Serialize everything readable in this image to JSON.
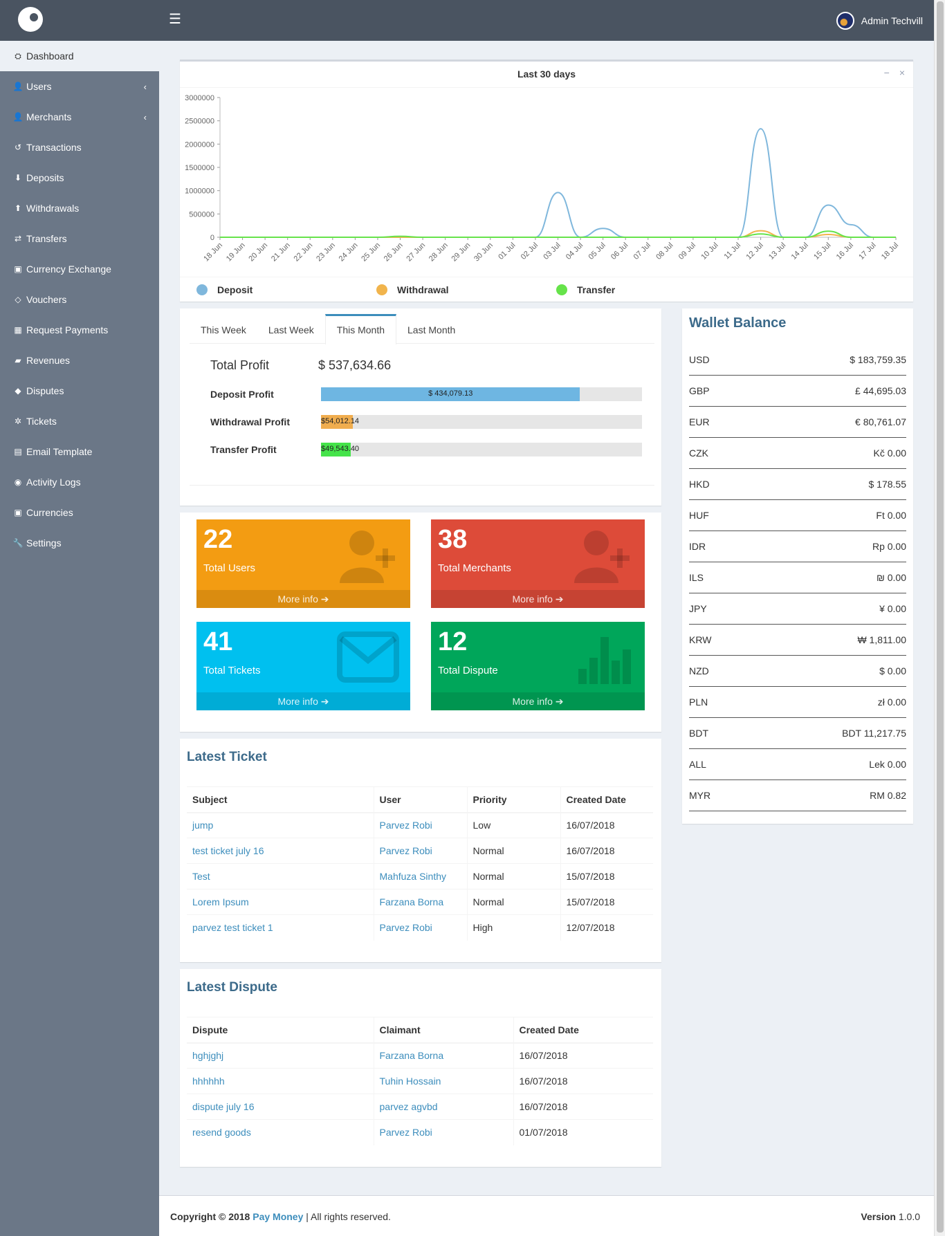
{
  "header": {
    "menu_icon": "☰",
    "user_name": "Admin Techvill"
  },
  "sidebar": {
    "items": [
      {
        "label": "Dashboard",
        "icon": "dashboard-icon",
        "glyph": "⛭"
      },
      {
        "label": "Users",
        "icon": "user-icon",
        "glyph": "👤",
        "arrow": "‹"
      },
      {
        "label": "Merchants",
        "icon": "user-icon",
        "glyph": "👤",
        "arrow": "‹"
      },
      {
        "label": "Transactions",
        "icon": "history-icon",
        "glyph": "↺"
      },
      {
        "label": "Deposits",
        "icon": "arrow-down-icon",
        "glyph": "⬇"
      },
      {
        "label": "Withdrawals",
        "icon": "arrow-up-icon",
        "glyph": "⬆"
      },
      {
        "label": "Transfers",
        "icon": "exchange-icon",
        "glyph": "⇄"
      },
      {
        "label": "Currency Exchange",
        "icon": "money-icon",
        "glyph": "▣"
      },
      {
        "label": "Vouchers",
        "icon": "diamond-icon",
        "glyph": "◇"
      },
      {
        "label": "Request Payments",
        "icon": "calculator-icon",
        "glyph": "▦"
      },
      {
        "label": "Revenues",
        "icon": "book-icon",
        "glyph": "▰"
      },
      {
        "label": "Disputes",
        "icon": "gavel-icon",
        "glyph": "◆"
      },
      {
        "label": "Tickets",
        "icon": "spinner-icon",
        "glyph": "✲"
      },
      {
        "label": "Email Template",
        "icon": "keyboard-icon",
        "glyph": "▤"
      },
      {
        "label": "Activity Logs",
        "icon": "eye-icon",
        "glyph": "◉"
      },
      {
        "label": "Currencies",
        "icon": "money-icon",
        "glyph": "▣"
      },
      {
        "label": "Settings",
        "icon": "wrench-icon",
        "glyph": "🔧"
      }
    ]
  },
  "chart_box": {
    "title": "Last 30 days",
    "minimize": "−",
    "close": "×"
  },
  "chart_data": {
    "type": "line",
    "title": "Last 30 days",
    "x": [
      "18 Jun",
      "19 Jun",
      "20 Jun",
      "21 Jun",
      "22 Jun",
      "23 Jun",
      "24 Jun",
      "25 Jun",
      "26 Jun",
      "27 Jun",
      "28 Jun",
      "29 Jun",
      "30 Jun",
      "01 Jul",
      "02 Jul",
      "03 Jul",
      "04 Jul",
      "05 Jul",
      "06 Jul",
      "07 Jul",
      "08 Jul",
      "09 Jul",
      "10 Jul",
      "11 Jul",
      "12 Jul",
      "13 Jul",
      "14 Jul",
      "15 Jul",
      "16 Jul",
      "17 Jul",
      "18 Jul"
    ],
    "ylim": [
      0,
      3000000
    ],
    "yticks": [
      0,
      500000,
      1000000,
      1500000,
      2000000,
      2500000,
      3000000
    ],
    "legend_position": "bottom",
    "series": [
      {
        "name": "Deposit",
        "color": "#7fb7dc",
        "values": [
          0,
          0,
          0,
          0,
          0,
          0,
          0,
          0,
          0,
          0,
          0,
          0,
          0,
          0,
          0,
          960000,
          0,
          190000,
          0,
          0,
          0,
          0,
          0,
          0,
          2330000,
          0,
          0,
          690000,
          270000,
          0,
          0
        ]
      },
      {
        "name": "Withdrawal",
        "color": "#f1b44c",
        "values": [
          0,
          0,
          0,
          0,
          0,
          0,
          0,
          0,
          0,
          0,
          0,
          0,
          0,
          0,
          0,
          0,
          0,
          0,
          0,
          0,
          0,
          0,
          0,
          0,
          140000,
          0,
          0,
          60000,
          0,
          0,
          0
        ]
      },
      {
        "name": "Transfer",
        "color": "#66e34a",
        "values": [
          0,
          0,
          0,
          0,
          0,
          0,
          0,
          0,
          20000,
          0,
          0,
          0,
          0,
          0,
          0,
          0,
          0,
          0,
          0,
          0,
          0,
          0,
          0,
          0,
          70000,
          0,
          0,
          130000,
          0,
          0,
          0
        ]
      }
    ]
  },
  "profit": {
    "tabs": [
      "This Week",
      "Last Week",
      "This Month",
      "Last Month"
    ],
    "active_tab": "This Month",
    "total_label": "Total Profit",
    "total_value": "$ 537,634.66",
    "rows": [
      {
        "label": "Deposit Profit",
        "value": "$ 434,079.13",
        "fraction": 0.807,
        "color": "#6eb6e2"
      },
      {
        "label": "Withdrawal Profit",
        "value": "$54,012.14",
        "fraction": 0.1,
        "color": "#f0ad4e"
      },
      {
        "label": "Transfer Profit",
        "value": "$49,543.40",
        "fraction": 0.092,
        "color": "#45e34a"
      }
    ]
  },
  "stats": {
    "more_info": "More info ➔",
    "cards": [
      {
        "count": "22",
        "label": "Total Users",
        "color": "#f39c12",
        "icon": "user-plus-icon"
      },
      {
        "count": "38",
        "label": "Total Merchants",
        "color": "#dd4b39",
        "icon": "user-plus-icon"
      },
      {
        "count": "41",
        "label": "Total Tickets",
        "color": "#00c0ef",
        "icon": "envelope-icon"
      },
      {
        "count": "12",
        "label": "Total Dispute",
        "color": "#00a65a",
        "icon": "bar-chart-icon"
      }
    ]
  },
  "latest_ticket": {
    "title": "Latest Ticket",
    "columns": [
      "Subject",
      "User",
      "Priority",
      "Created Date"
    ],
    "rows": [
      [
        "jump",
        "Parvez Robi",
        "Low",
        "16/07/2018"
      ],
      [
        "test ticket july 16",
        "Parvez Robi",
        "Normal",
        "16/07/2018"
      ],
      [
        "Test",
        "Mahfuza Sinthy",
        "Normal",
        "15/07/2018"
      ],
      [
        "Lorem Ipsum",
        "Farzana Borna",
        "Normal",
        "15/07/2018"
      ],
      [
        "parvez test ticket 1",
        "Parvez Robi",
        "High",
        "12/07/2018"
      ]
    ]
  },
  "latest_dispute": {
    "title": "Latest Dispute",
    "columns": [
      "Dispute",
      "Claimant",
      "Created Date"
    ],
    "rows": [
      [
        "hghjghj",
        "Farzana Borna",
        "16/07/2018"
      ],
      [
        "hhhhhh",
        "Tuhin Hossain",
        "16/07/2018"
      ],
      [
        "dispute july 16",
        "parvez agvbd",
        "16/07/2018"
      ],
      [
        "resend goods",
        "Parvez Robi",
        "01/07/2018"
      ]
    ]
  },
  "wallet": {
    "title": "Wallet Balance",
    "rows": [
      {
        "code": "USD",
        "amount": "$ 183,759.35"
      },
      {
        "code": "GBP",
        "amount": "£ 44,695.03"
      },
      {
        "code": "EUR",
        "amount": "€ 80,761.07"
      },
      {
        "code": "CZK",
        "amount": "Kč 0.00"
      },
      {
        "code": "HKD",
        "amount": "$ 178.55"
      },
      {
        "code": "HUF",
        "amount": "Ft 0.00"
      },
      {
        "code": "IDR",
        "amount": "Rp 0.00"
      },
      {
        "code": "ILS",
        "amount": "₪ 0.00"
      },
      {
        "code": "JPY",
        "amount": "¥ 0.00"
      },
      {
        "code": "KRW",
        "amount": "₩ 1,811.00"
      },
      {
        "code": "NZD",
        "amount": "$ 0.00"
      },
      {
        "code": "PLN",
        "amount": "zł 0.00"
      },
      {
        "code": "BDT",
        "amount": "BDT 11,217.75"
      },
      {
        "code": "ALL",
        "amount": "Lek 0.00"
      },
      {
        "code": "MYR",
        "amount": "RM 0.82"
      }
    ]
  },
  "footer": {
    "copyright_prefix": "Copyright © 2018",
    "brand": "Pay Money",
    "suffix": "| All rights reserved.",
    "version_label": "Version",
    "version_value": "1.0.0"
  }
}
